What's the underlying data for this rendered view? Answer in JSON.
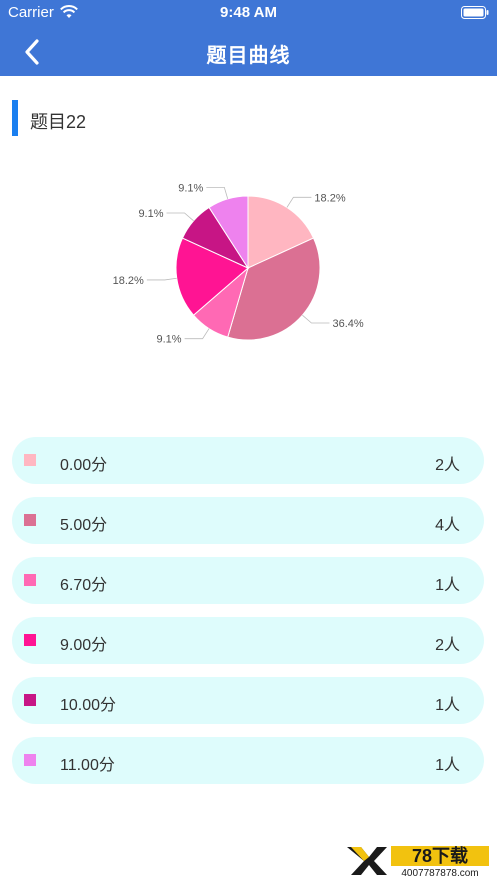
{
  "status_bar": {
    "carrier": "Carrier",
    "time": "9:48 AM"
  },
  "nav": {
    "title": "题目曲线",
    "back_icon": "chevron-left-icon"
  },
  "section": {
    "title": "题目22"
  },
  "chart_data": {
    "type": "pie",
    "slices": [
      {
        "label": "18.2%",
        "value": 2,
        "color": "#ffb6c1"
      },
      {
        "label": "36.4%",
        "value": 4,
        "color": "#db7093"
      },
      {
        "label": "9.1%",
        "value": 1,
        "color": "#ff69b4"
      },
      {
        "label": "18.2%",
        "value": 2,
        "color": "#ff1493"
      },
      {
        "label": "9.1%",
        "value": 1,
        "color": "#c71585"
      },
      {
        "label": "9.1%",
        "value": 1,
        "color": "#ee82ee"
      }
    ]
  },
  "legend": [
    {
      "score": "0.00分",
      "count": "2人",
      "color": "#ffb6c1"
    },
    {
      "score": "5.00分",
      "count": "4人",
      "color": "#db7093"
    },
    {
      "score": "6.70分",
      "count": "1人",
      "color": "#ff69b4"
    },
    {
      "score": "9.00分",
      "count": "2人",
      "color": "#ff1493"
    },
    {
      "score": "10.00分",
      "count": "1人",
      "color": "#c71585"
    },
    {
      "score": "11.00分",
      "count": "1人",
      "color": "#ee82ee"
    }
  ],
  "watermark": {
    "brand": "78下载",
    "phone": "4007787878.com"
  }
}
